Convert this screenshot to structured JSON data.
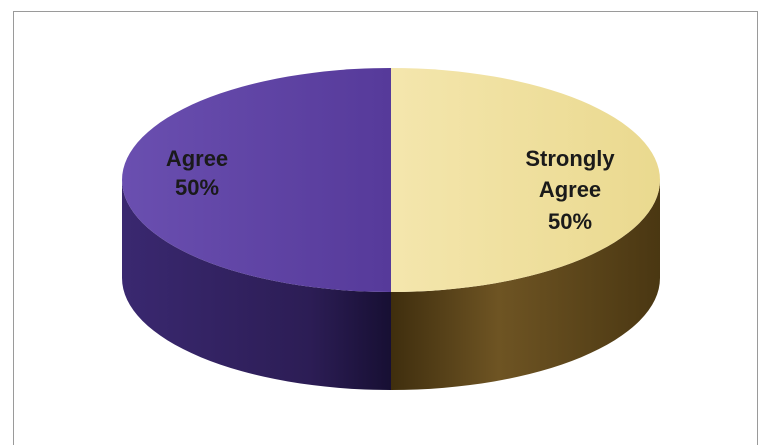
{
  "chart_data": {
    "type": "pie",
    "title": "",
    "categories": [
      "Agree",
      "Strongly Agree"
    ],
    "values": [
      50,
      50
    ],
    "series": [
      {
        "values": [
          50,
          50
        ]
      }
    ],
    "labels": [
      {
        "name_lines": [
          "Agree"
        ],
        "pct": "50%"
      },
      {
        "name_lines": [
          "Strongly",
          "Agree"
        ],
        "pct": "50%"
      }
    ],
    "legend": "none",
    "style": "3d",
    "colors": {
      "agree": "#5b3f9f",
      "agree_side": "#2e1f58",
      "strongly_agree": "#efdf9c",
      "strongly_agree_side": "#6b5220"
    }
  }
}
